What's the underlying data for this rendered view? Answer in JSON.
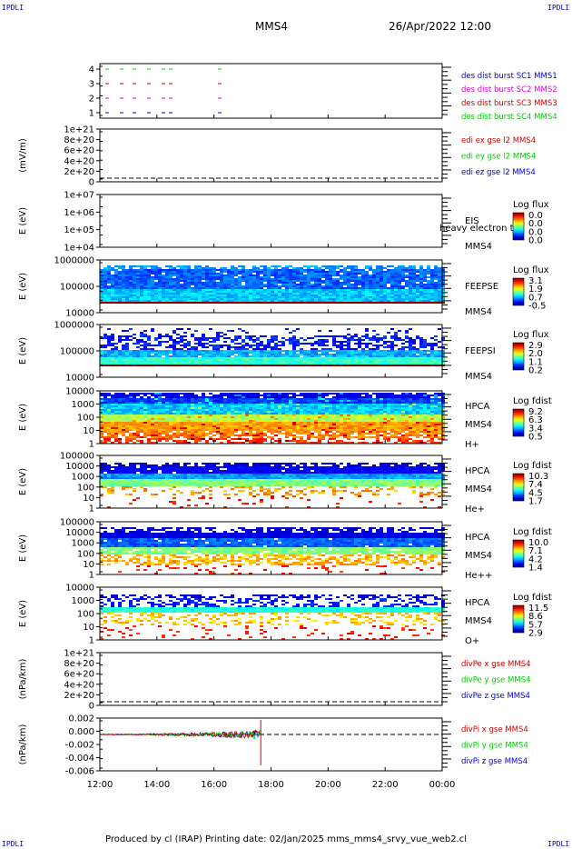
{
  "header": {
    "title": "MMS4",
    "datetime": "26/Apr/2022 12:00"
  },
  "corners": [
    "IPDLI",
    "IPDLI",
    "IPDLI",
    "IPDLI"
  ],
  "footer": "Produced by cl (IRAP)   Printing date: 02/Jan/2025   mms_mms4_srvy_vue_web2.cl",
  "colors": {
    "red": "#cc0000",
    "green": "#00cc00",
    "blue": "#0000cc",
    "magenta": "#dd00dd"
  },
  "chart_data": {
    "type": "heatmap",
    "x_ticks": [
      "12:00",
      "14:00",
      "16:00",
      "18:00",
      "20:00",
      "22:00",
      "00:00"
    ],
    "data_end_fraction": 0.47,
    "panels": [
      {
        "id": "burst",
        "ylabel": "",
        "yticks": [
          "4",
          "3",
          "2",
          "1"
        ],
        "legend": [
          {
            "text": "des dist burst SC1 MMS1",
            "color": "#0000cc"
          },
          {
            "text": "des dist burst SC2 MMS2",
            "color": "#dd00dd"
          },
          {
            "text": "des dist burst SC3 MMS3",
            "color": "#cc0000"
          },
          {
            "text": "des dist burst SC4 MMS4",
            "color": "#00cc00"
          }
        ]
      },
      {
        "id": "edi",
        "ylabel": "(mV/m)",
        "yticks": [
          "1e+21",
          "8e+20",
          "6e+20",
          "4e+20",
          "2e+20",
          "0"
        ],
        "legend": [
          {
            "text": "edi ex gse l2 MMS4",
            "color": "#cc0000"
          },
          {
            "text": "edi ey gse l2 MMS4",
            "color": "#00cc00"
          },
          {
            "text": "edi ez gse l2 MMS4",
            "color": "#0000cc"
          }
        ]
      },
      {
        "id": "eis",
        "ylabel": "E (eV)",
        "yticks": [
          "1e+07",
          "1e+06",
          "1e+05",
          "1e+04"
        ],
        "side_labels": [
          "EIS",
          "MMS4"
        ],
        "overlay": "heavy electron to",
        "cbar": {
          "title": "Log flux",
          "ticks": [
            "0.0",
            "0.0",
            "0.0",
            "0.0"
          ]
        }
      },
      {
        "id": "feepse",
        "ylabel": "E (eV)",
        "yticks": [
          "1000000",
          "100000",
          "10000"
        ],
        "side_labels": [
          "FEEPSE",
          "MMS4"
        ],
        "cbar": {
          "title": "Log flux",
          "ticks": [
            "3.1",
            "1.9",
            "0.7",
            "-0.5"
          ]
        }
      },
      {
        "id": "feepsi",
        "ylabel": "E (eV)",
        "yticks": [
          "1000000",
          "100000",
          "10000"
        ],
        "side_labels": [
          "FEEPSI",
          "MMS4"
        ],
        "cbar": {
          "title": "Log flux",
          "ticks": [
            "2.9",
            "2.0",
            "1.1",
            "0.2"
          ]
        }
      },
      {
        "id": "hpca_h",
        "ylabel": "E (eV)",
        "yticks": [
          "10000",
          "1000",
          "100",
          "10",
          "1"
        ],
        "side_labels": [
          "HPCA",
          "MMS4",
          "H+"
        ],
        "cbar": {
          "title": "Log fdist",
          "ticks": [
            "9.2",
            "6.3",
            "3.4",
            "0.5"
          ]
        }
      },
      {
        "id": "hpca_he",
        "ylabel": "E (eV)",
        "yticks": [
          "100000",
          "10000",
          "1000",
          "100",
          "10",
          "1"
        ],
        "side_labels": [
          "HPCA",
          "MMS4",
          "He+"
        ],
        "cbar": {
          "title": "Log fdist",
          "ticks": [
            "10.3",
            "7.4",
            "4.5",
            "1.7"
          ]
        }
      },
      {
        "id": "hpca_hepp",
        "ylabel": "E (eV)",
        "yticks": [
          "100000",
          "10000",
          "1000",
          "100",
          "10",
          "1"
        ],
        "side_labels": [
          "HPCA",
          "MMS4",
          "He++"
        ],
        "cbar": {
          "title": "Log fdist",
          "ticks": [
            "10.0",
            "7.1",
            "4.2",
            "1.4"
          ]
        }
      },
      {
        "id": "hpca_o",
        "ylabel": "E (eV)",
        "yticks": [
          "10000",
          "1000",
          "100",
          "10",
          "1"
        ],
        "side_labels": [
          "HPCA",
          "MMS4",
          "O+"
        ],
        "cbar": {
          "title": "Log fdist",
          "ticks": [
            "11.5",
            "8.6",
            "5.7",
            "2.9"
          ]
        }
      },
      {
        "id": "divpe",
        "ylabel": "(nPa/km)",
        "yticks": [
          "1e+21",
          "8e+20",
          "6e+20",
          "4e+20",
          "2e+20",
          "0"
        ],
        "legend": [
          {
            "text": "divPe x gse MMS4",
            "color": "#cc0000"
          },
          {
            "text": "divPe y gse MMS4",
            "color": "#00cc00"
          },
          {
            "text": "divPe z gse MMS4",
            "color": "#0000cc"
          }
        ]
      },
      {
        "id": "divpi",
        "ylabel": "(nPa/km)",
        "yticks": [
          "0.002",
          "0.000",
          "-0.002",
          "-0.004",
          "-0.006"
        ],
        "legend": [
          {
            "text": "divPi x gse MMS4",
            "color": "#cc0000"
          },
          {
            "text": "divPi y gse MMS4",
            "color": "#00cc00"
          },
          {
            "text": "divPi z gse MMS4",
            "color": "#0000cc"
          }
        ]
      }
    ]
  }
}
